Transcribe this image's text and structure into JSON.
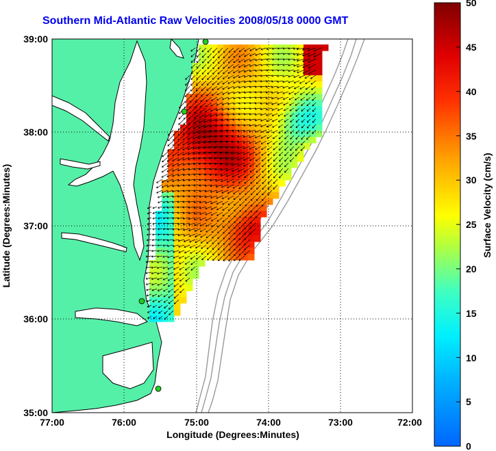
{
  "title": "Southern Mid-Atlantic Raw Velocities 2008/05/18 0000 GMT",
  "xaxis": {
    "label": "Longitude (Degrees:Minutes)",
    "ticks": [
      "77:00",
      "76:00",
      "75:00",
      "74:00",
      "73:00",
      "72:00"
    ]
  },
  "yaxis": {
    "label": "Latitude (Degrees:Minutes)",
    "ticks": [
      "39:00",
      "38:00",
      "37:00",
      "36:00",
      "35:00"
    ]
  },
  "colorbar": {
    "label": "Surface Velocity (cm/s)",
    "ticks": [
      "50",
      "45",
      "40",
      "35",
      "30",
      "25",
      "20",
      "15",
      "10",
      "5",
      "0"
    ],
    "range": [
      0,
      50
    ]
  },
  "map": {
    "lon_range": [
      -77,
      -72
    ],
    "lat_range": [
      35,
      39
    ],
    "grid": "dotted",
    "land_color": "#55f0a8",
    "water_color": "#ffffff",
    "station_color": "#22cc22"
  }
}
